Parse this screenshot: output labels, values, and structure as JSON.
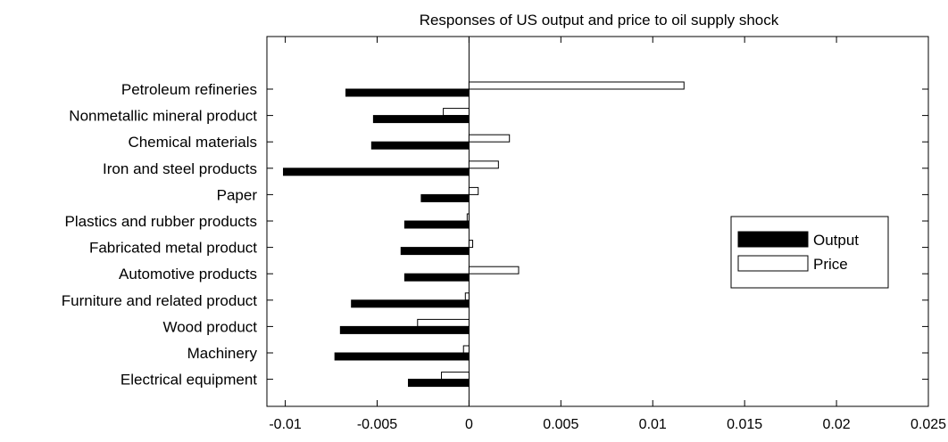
{
  "chart_data": {
    "type": "bar",
    "orientation": "horizontal",
    "title": "Responses of US output and price to oil supply shock",
    "xlabel": "",
    "ylabel": "",
    "xlim": [
      -0.011,
      0.025
    ],
    "xticks": [
      -0.01,
      -0.005,
      0,
      0.005,
      0.01,
      0.015,
      0.02,
      0.025
    ],
    "xtick_labels": [
      "-0.01",
      "-0.005",
      "0",
      "0.005",
      "0.01",
      "0.015",
      "0.02",
      "0.025"
    ],
    "grid": false,
    "legend_position": "right",
    "categories": [
      "Petroleum refineries",
      "Nonmetallic mineral product",
      "Chemical materials",
      "Iron and steel products",
      "Paper",
      "Plastics and rubber products",
      "Fabricated metal product",
      "Automotive products",
      "Furniture and related product",
      "Wood product",
      "Machinery",
      "Electrical equipment"
    ],
    "series": [
      {
        "name": "Output",
        "color": "#000000",
        "values": [
          -0.0067,
          -0.0052,
          -0.0053,
          -0.0101,
          -0.0026,
          -0.0035,
          -0.0037,
          -0.0035,
          -0.0064,
          -0.007,
          -0.0073,
          -0.0033
        ]
      },
      {
        "name": "Price",
        "color": "#ffffff",
        "values": [
          0.0117,
          -0.0014,
          0.0022,
          0.0016,
          0.0005,
          -0.0001,
          0.0002,
          0.0027,
          -0.0002,
          -0.0028,
          -0.0003,
          -0.0015
        ]
      }
    ]
  }
}
